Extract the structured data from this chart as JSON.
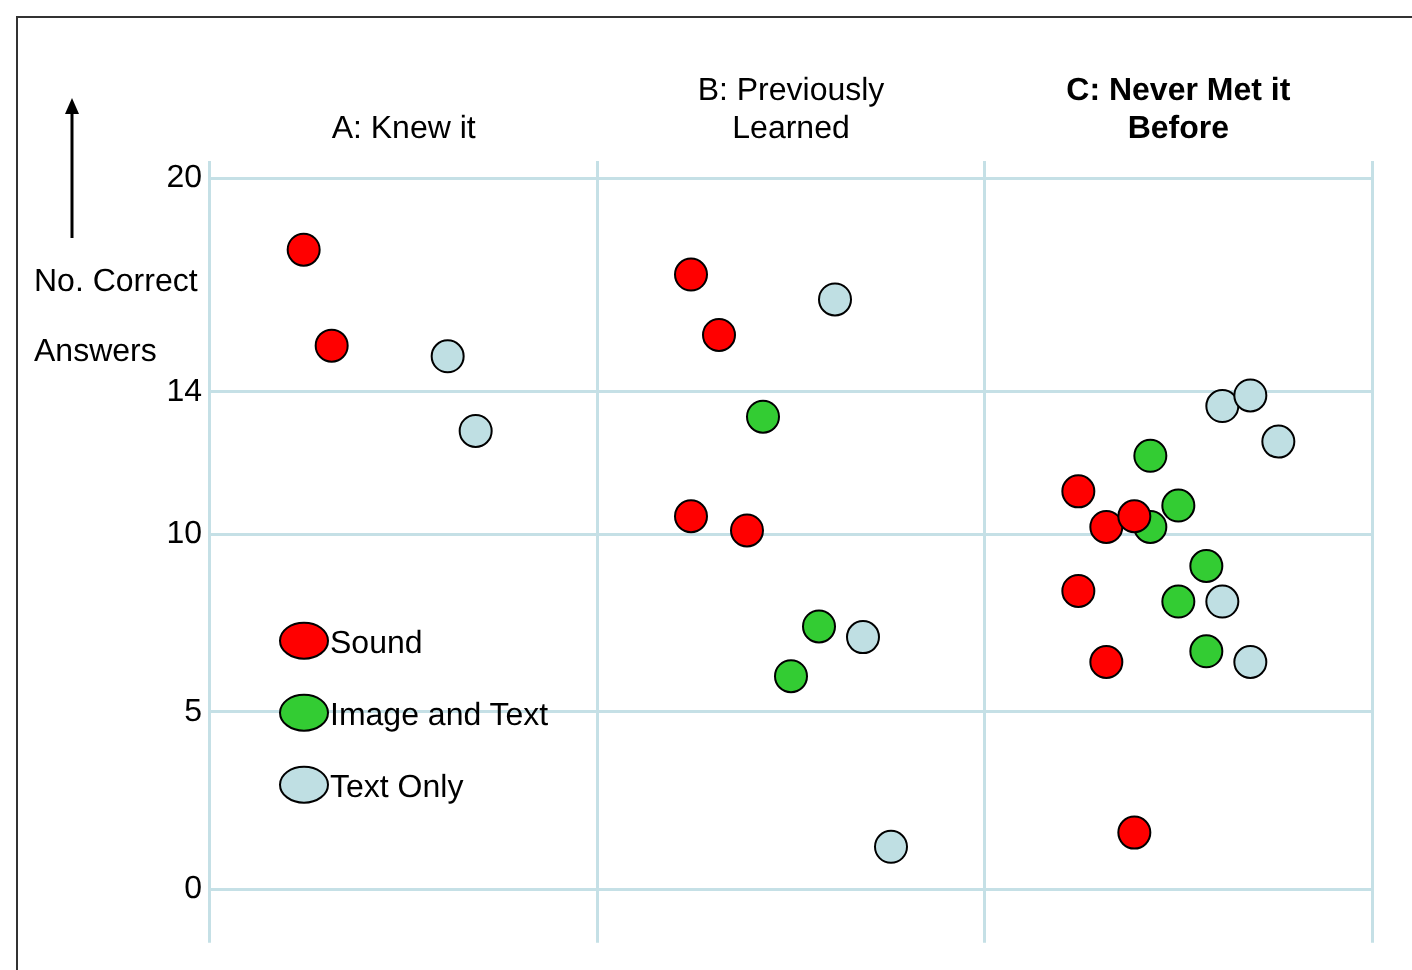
{
  "chart_data": {
    "type": "scatter",
    "ylabel": "No. Correct Answers",
    "categories": [
      "A: Knew it",
      "B: Previously Learned",
      "C: Never Met it Before"
    ],
    "ylim": [
      -1.5,
      20.5
    ],
    "yticks": [
      0,
      5,
      10,
      14,
      20
    ],
    "grid": true,
    "legend": "bottom left",
    "marker": "circle",
    "series": [
      {
        "name": "Sound",
        "color": "#ff0000",
        "x": [
          "A: Knew it",
          "A: Knew it",
          "B: Previously Learned",
          "B: Previously Learned",
          "B: Previously Learned",
          "B: Previously Learned",
          "C: Never Met it Before",
          "C: Never Met it Before",
          "C: Never Met it Before",
          "C: Never Met it Before",
          "C: Never Met it Before",
          "C: Never Met it Before"
        ],
        "values": [
          18.0,
          15.3,
          17.3,
          15.6,
          10.1,
          10.5,
          11.2,
          10.2,
          10.5,
          8.4,
          6.4,
          1.6
        ]
      },
      {
        "name": "Image and Text",
        "color": "#33cc33",
        "x": [
          "B: Previously Learned",
          "B: Previously Learned",
          "B: Previously Learned",
          "C: Never Met it Before",
          "C: Never Met it Before",
          "C: Never Met it Before",
          "C: Never Met it Before",
          "C: Never Met it Before",
          "C: Never Met it Before"
        ],
        "values": [
          13.3,
          6.0,
          7.4,
          12.2,
          8.1,
          9.1,
          10.2,
          10.8,
          6.7
        ]
      },
      {
        "name": "Text Only",
        "color": "#bfdfe3",
        "x": [
          "A: Knew it",
          "A: Knew it",
          "B: Previously Learned",
          "B: Previously Learned",
          "B: Previously Learned",
          "C: Never Met it Before",
          "C: Never Met it Before",
          "C: Never Met it Before",
          "C: Never Met it Before",
          "C: Never Met it Before"
        ],
        "values": [
          15.0,
          12.9,
          16.6,
          7.1,
          1.2,
          13.6,
          13.9,
          12.6,
          8.1,
          6.4
        ]
      }
    ]
  }
}
